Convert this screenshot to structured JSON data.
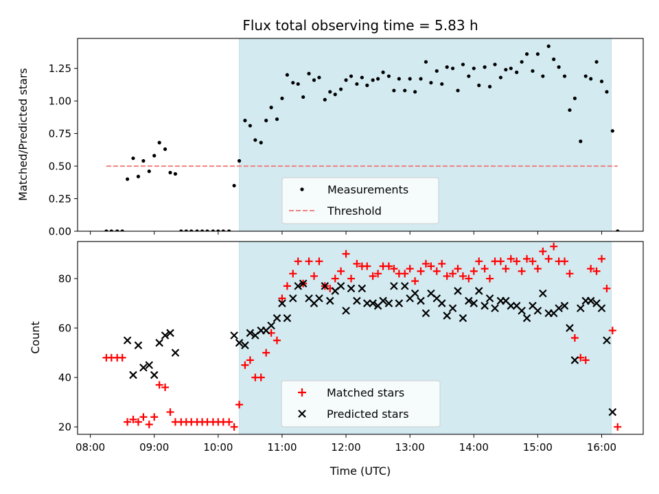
{
  "chart_data": [
    {
      "type": "scatter",
      "title": "Flux total observing time = 5.83 h",
      "xlabel": "",
      "ylabel": "Matched/Predicted stars",
      "x_unit": "hours UTC",
      "xlim": [
        7.8,
        16.65
      ],
      "ylim": [
        0,
        1.48
      ],
      "yticks": [
        0,
        0.25,
        0.5,
        0.75,
        1.0,
        1.25
      ],
      "ytick_labels": [
        "0.00",
        "0.25",
        "0.50",
        "0.75",
        "1.00",
        "1.25"
      ],
      "shaded_span": {
        "start": 10.33,
        "end": 16.15,
        "color": "#d3eaf1"
      },
      "legend_position": "lower-center",
      "threshold": {
        "name": "Threshold",
        "y": 0.5,
        "x_start": 8.25,
        "x_end": 16.25,
        "color": "#f08080"
      },
      "series": [
        {
          "name": "Measurements",
          "marker": "dot",
          "color": "#000000",
          "x": [
            8.25,
            8.33,
            8.42,
            8.5,
            8.58,
            8.67,
            8.75,
            8.83,
            8.92,
            9.0,
            9.08,
            9.17,
            9.25,
            9.33,
            9.42,
            9.5,
            9.58,
            9.67,
            9.75,
            9.83,
            9.92,
            10.0,
            10.08,
            10.17,
            10.25,
            10.33,
            10.42,
            10.5,
            10.58,
            10.67,
            10.75,
            10.83,
            10.92,
            11.0,
            11.08,
            11.17,
            11.25,
            11.33,
            11.42,
            11.5,
            11.58,
            11.67,
            11.75,
            11.83,
            11.92,
            12.0,
            12.08,
            12.17,
            12.25,
            12.33,
            12.42,
            12.5,
            12.58,
            12.67,
            12.75,
            12.83,
            12.92,
            13.0,
            13.08,
            13.17,
            13.25,
            13.33,
            13.42,
            13.5,
            13.58,
            13.67,
            13.75,
            13.83,
            13.92,
            14.0,
            14.08,
            14.17,
            14.25,
            14.33,
            14.42,
            14.5,
            14.58,
            14.67,
            14.75,
            14.83,
            14.92,
            15.0,
            15.08,
            15.17,
            15.25,
            15.33,
            15.42,
            15.5,
            15.58,
            15.67,
            15.75,
            15.83,
            15.92,
            16.0,
            16.08,
            16.17,
            16.25
          ],
          "y": [
            0,
            0,
            0,
            0,
            0.4,
            0.56,
            0.42,
            0.54,
            0.46,
            0.58,
            0.68,
            0.63,
            0.45,
            0.44,
            0,
            0,
            0,
            0,
            0,
            0,
            0,
            0,
            0,
            0,
            0.35,
            0.54,
            0.85,
            0.81,
            0.7,
            0.68,
            0.85,
            0.95,
            0.86,
            1.02,
            1.2,
            1.14,
            1.13,
            1.03,
            1.21,
            1.16,
            1.18,
            1.01,
            1.07,
            1.05,
            1.09,
            1.16,
            1.19,
            1.13,
            1.18,
            1.12,
            1.16,
            1.17,
            1.22,
            1.19,
            1.08,
            1.17,
            1.08,
            1.17,
            1.07,
            1.17,
            1.3,
            1.14,
            1.23,
            1.13,
            1.26,
            1.25,
            1.08,
            1.28,
            1.19,
            1.25,
            1.12,
            1.26,
            1.11,
            1.28,
            1.18,
            1.24,
            1.25,
            1.22,
            1.3,
            1.36,
            1.23,
            1.36,
            1.19,
            1.42,
            1.32,
            1.26,
            1.19,
            0.93,
            1.02,
            0.69,
            1.19,
            1.17,
            1.3,
            1.15,
            1.07,
            0.77,
            0
          ]
        }
      ]
    },
    {
      "type": "scatter",
      "title": "",
      "xlabel": "Time (UTC)",
      "ylabel": "Count",
      "x_unit": "hours UTC",
      "xlim": [
        7.8,
        16.65
      ],
      "ylim": [
        17,
        95
      ],
      "yticks": [
        20,
        40,
        60,
        80
      ],
      "ytick_labels": [
        "20",
        "40",
        "60",
        "80"
      ],
      "xticks": [
        8,
        9,
        10,
        11,
        12,
        13,
        14,
        15,
        16
      ],
      "xtick_labels": [
        "08:00",
        "09:00",
        "10:00",
        "11:00",
        "12:00",
        "13:00",
        "14:00",
        "15:00",
        "16:00"
      ],
      "shaded_span": {
        "start": 10.33,
        "end": 16.15,
        "color": "#d3eaf1"
      },
      "legend_position": "lower-center",
      "series": [
        {
          "name": "Matched stars",
          "marker": "plus",
          "color": "#ff0000",
          "x": [
            8.25,
            8.33,
            8.42,
            8.5,
            8.58,
            8.67,
            8.75,
            8.83,
            8.92,
            9.0,
            9.08,
            9.17,
            9.25,
            9.33,
            9.42,
            9.5,
            9.58,
            9.67,
            9.75,
            9.83,
            9.92,
            10.0,
            10.08,
            10.17,
            10.25,
            10.33,
            10.42,
            10.5,
            10.58,
            10.67,
            10.75,
            10.83,
            10.92,
            11.0,
            11.08,
            11.17,
            11.25,
            11.33,
            11.42,
            11.5,
            11.58,
            11.67,
            11.75,
            11.83,
            11.92,
            12.0,
            12.08,
            12.17,
            12.25,
            12.33,
            12.42,
            12.5,
            12.58,
            12.67,
            12.75,
            12.83,
            12.92,
            13.0,
            13.08,
            13.17,
            13.25,
            13.33,
            13.42,
            13.5,
            13.58,
            13.67,
            13.75,
            13.83,
            13.92,
            14.0,
            14.08,
            14.17,
            14.25,
            14.33,
            14.42,
            14.5,
            14.58,
            14.67,
            14.75,
            14.83,
            14.92,
            15.0,
            15.08,
            15.17,
            15.25,
            15.33,
            15.42,
            15.5,
            15.58,
            15.67,
            15.75,
            15.83,
            15.92,
            16.0,
            16.08,
            16.17,
            16.25
          ],
          "y": [
            48,
            48,
            48,
            48,
            22,
            23,
            22,
            24,
            21,
            24,
            37,
            36,
            26,
            22,
            22,
            22,
            22,
            22,
            22,
            22,
            22,
            22,
            22,
            22,
            20,
            29,
            45,
            47,
            40,
            40,
            50,
            58,
            55,
            72,
            77,
            82,
            87,
            78,
            87,
            81,
            87,
            77,
            76,
            80,
            83,
            90,
            80,
            86,
            85,
            85,
            81,
            82,
            85,
            85,
            84,
            82,
            82,
            84,
            79,
            83,
            86,
            85,
            83,
            86,
            81,
            82,
            84,
            81,
            80,
            83,
            87,
            84,
            80,
            87,
            87,
            84,
            88,
            87,
            83,
            88,
            87,
            84,
            91,
            88,
            93,
            87,
            87,
            82,
            56,
            48,
            47,
            84,
            83,
            88,
            76,
            59,
            20
          ]
        },
        {
          "name": "Predicted stars",
          "marker": "x",
          "color": "#000000",
          "x": [
            8.58,
            8.67,
            8.75,
            8.83,
            8.92,
            9.0,
            9.08,
            9.17,
            9.25,
            9.33,
            10.25,
            10.33,
            10.42,
            10.5,
            10.58,
            10.67,
            10.75,
            10.83,
            10.92,
            11.0,
            11.08,
            11.17,
            11.25,
            11.33,
            11.42,
            11.5,
            11.58,
            11.67,
            11.75,
            11.83,
            11.92,
            12.0,
            12.08,
            12.17,
            12.25,
            12.33,
            12.42,
            12.5,
            12.58,
            12.67,
            12.75,
            12.83,
            12.92,
            13.0,
            13.08,
            13.17,
            13.25,
            13.33,
            13.42,
            13.5,
            13.58,
            13.67,
            13.75,
            13.83,
            13.92,
            14.0,
            14.08,
            14.17,
            14.25,
            14.33,
            14.42,
            14.5,
            14.58,
            14.67,
            14.75,
            14.83,
            14.92,
            15.0,
            15.08,
            15.17,
            15.25,
            15.33,
            15.42,
            15.5,
            15.58,
            15.67,
            15.75,
            15.83,
            15.92,
            16.0,
            16.08,
            16.17
          ],
          "y": [
            55,
            41,
            53,
            44,
            45,
            41,
            54,
            57,
            58,
            50,
            57,
            54,
            53,
            58,
            57,
            59,
            59,
            61,
            64,
            70,
            64,
            72,
            77,
            78,
            72,
            70,
            72,
            77,
            71,
            75,
            77,
            67,
            76,
            71,
            76,
            70,
            70,
            69,
            71,
            70,
            77,
            70,
            77,
            72,
            74,
            71,
            66,
            74,
            72,
            70,
            65,
            68,
            75,
            64,
            71,
            70,
            75,
            69,
            72,
            68,
            71,
            71,
            69,
            69,
            67,
            64,
            69,
            67,
            74,
            66,
            66,
            68,
            69,
            60,
            47,
            68,
            71,
            71,
            70,
            68,
            55,
            26
          ]
        }
      ]
    }
  ]
}
